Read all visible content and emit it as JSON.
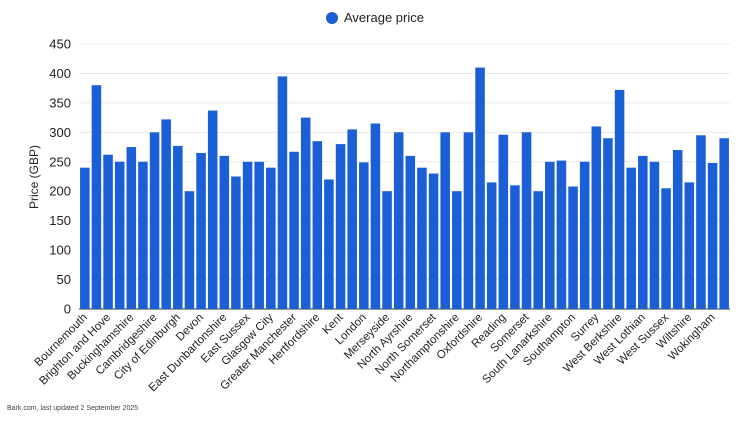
{
  "legend": {
    "label": "Average price",
    "color": "#1a5fd6"
  },
  "footer": {
    "text": "Bark.com, last updated 2 September 2025"
  },
  "chart_data": {
    "type": "bar",
    "ylabel": "Price (GBP)",
    "xlabel": "",
    "ylim": [
      0,
      450
    ],
    "yticks": [
      0,
      50,
      100,
      150,
      200,
      250,
      300,
      350,
      400,
      450
    ],
    "grid": true,
    "legend_position": "top-center",
    "bar_color": "#1a5fd6",
    "series": [
      {
        "name": "Average price"
      }
    ],
    "categories": [
      "Bournemouth",
      "",
      "Brighton and Hove",
      "",
      "Buckinghamshire",
      "",
      "Cambridgeshire",
      "",
      "City of Edinburgh",
      "",
      "Devon",
      "",
      "East Dunbartonshire",
      "",
      "East Sussex",
      "",
      "Glasgow City",
      "",
      "Greater Manchester",
      "",
      "Hertfordshire",
      "",
      "Kent",
      "",
      "London",
      "",
      "Merseyside",
      "",
      "North Ayrshire",
      "",
      "North Somerset",
      "",
      "Northamptonshire",
      "",
      "Oxfordshire",
      "",
      "Reading",
      "",
      "Somerset",
      "",
      "South Lanarkshire",
      "",
      "Southampton",
      "",
      "Surrey",
      "",
      "West Berkshire",
      "",
      "West Lothian",
      "",
      "West Sussex",
      "",
      "Wiltshire",
      "",
      "Wokingham",
      ""
    ],
    "values": [
      240,
      380,
      262,
      250,
      275,
      250,
      300,
      322,
      277,
      200,
      265,
      337,
      260,
      225,
      250,
      250,
      240,
      395,
      267,
      325,
      285,
      220,
      280,
      305,
      249,
      315,
      200,
      300,
      260,
      240,
      230,
      300,
      200,
      300,
      410,
      215,
      296,
      210,
      300,
      200,
      250,
      252,
      208,
      250,
      310,
      290,
      372,
      240,
      260,
      250,
      205,
      270,
      215,
      295,
      248,
      290
    ]
  }
}
